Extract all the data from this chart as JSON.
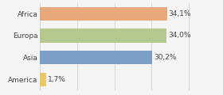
{
  "categories": [
    "Africa",
    "Europa",
    "Asia",
    "America"
  ],
  "values": [
    34.1,
    34.0,
    30.2,
    1.7
  ],
  "bar_colors": [
    "#e8a87c",
    "#b5c98e",
    "#7b9fc7",
    "#e8c96a"
  ],
  "labels": [
    "34,1%",
    "34,0%",
    "30,2%",
    "1,7%"
  ],
  "xlim": [
    0,
    42
  ],
  "background_color": "#f5f5f5",
  "bar_height": 0.62,
  "label_fontsize": 6.5,
  "tick_fontsize": 6.5
}
